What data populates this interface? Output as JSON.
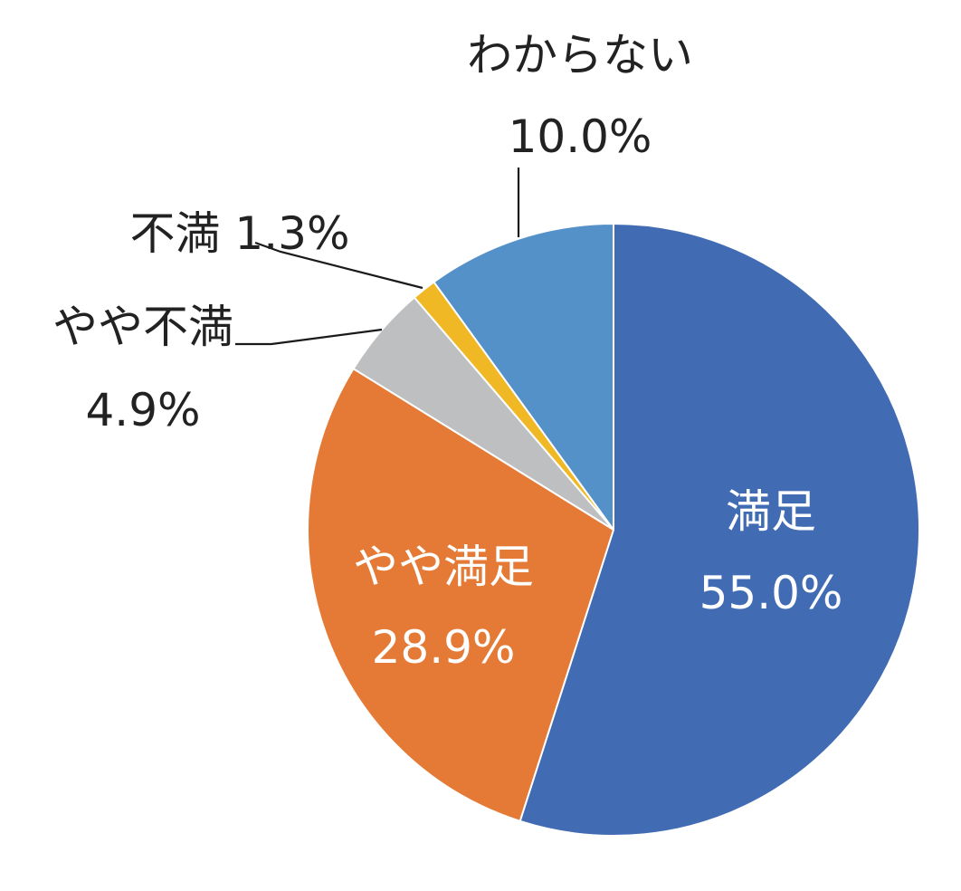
{
  "chart_data": {
    "type": "pie",
    "title": "",
    "start_angle_deg": 0,
    "direction": "clockwise",
    "slices": [
      {
        "label": "満足",
        "value": 55.0,
        "value_text": "55.0%",
        "color": "#416CB4",
        "label_position": "inside",
        "label_color": "#ffffff"
      },
      {
        "label": "やや満足",
        "value": 28.9,
        "value_text": "28.9%",
        "color": "#E47A35",
        "label_position": "inside",
        "label_color": "#ffffff"
      },
      {
        "label": "やや不満",
        "value": 4.9,
        "value_text": "4.9%",
        "color": "#BEBFC0",
        "label_position": "outside",
        "label_color": "#222222"
      },
      {
        "label": "不満",
        "value": 1.3,
        "value_text": "1.3%",
        "color": "#F1B826",
        "label_position": "outside",
        "label_color": "#222222"
      },
      {
        "label": "わからない",
        "value": 10.0,
        "value_text": "10.0%",
        "color": "#5591C9",
        "label_position": "outside",
        "label_color": "#222222"
      }
    ]
  }
}
